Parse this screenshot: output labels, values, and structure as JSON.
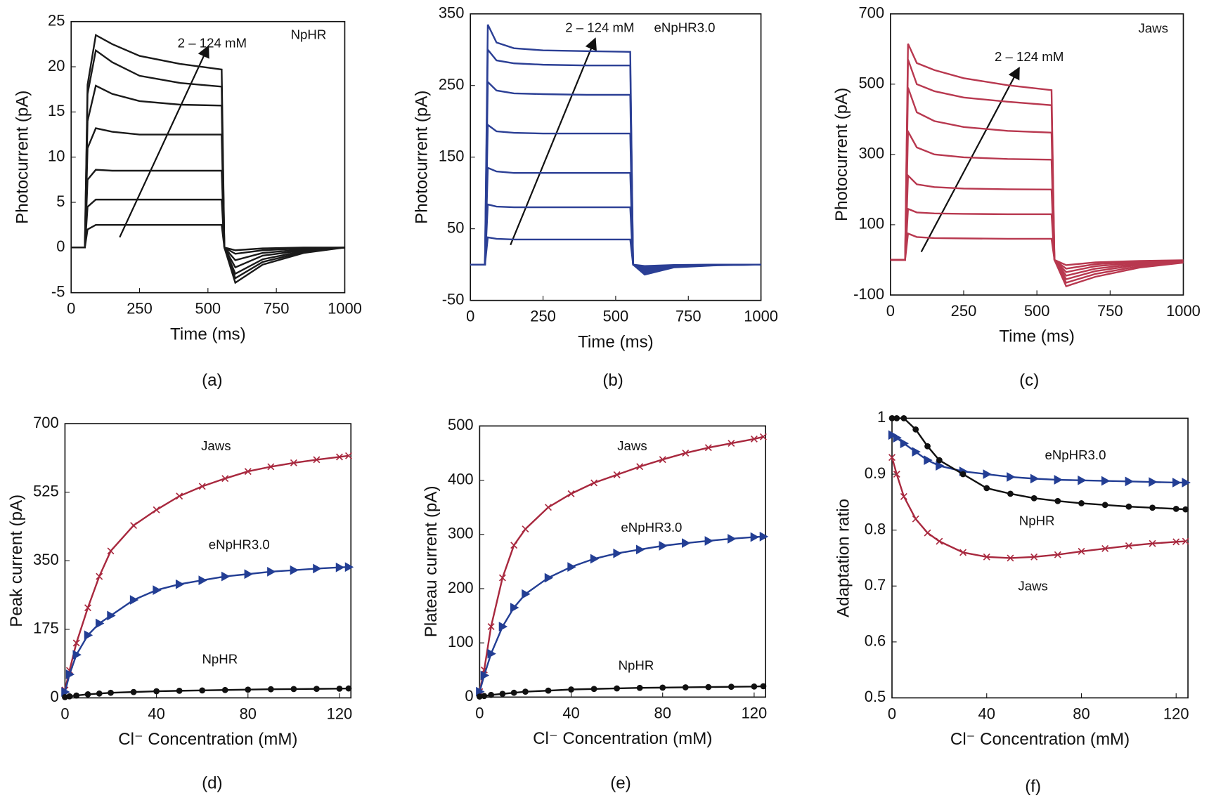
{
  "chart_data": [
    {
      "type": "line",
      "caption": "(a)",
      "xlabel": "Time (ms)",
      "ylabel": "Photocurrent (pA)",
      "annotations": [
        "2 – 124 mM",
        "NpHR"
      ],
      "x": [
        0,
        50,
        60,
        90,
        150,
        250,
        400,
        550,
        560,
        600,
        700,
        850,
        1000
      ],
      "xlim": [
        0,
        1000
      ],
      "xticks": [
        0,
        250,
        500,
        750,
        1000
      ],
      "ylim": [
        -5,
        25
      ],
      "yticks": [
        -5,
        0,
        5,
        10,
        15,
        20,
        25
      ],
      "series": [
        {
          "color": "#1a1a1a",
          "values": [
            0,
            0,
            2,
            2.5,
            2.5,
            2.5,
            2.5,
            2.5,
            0,
            -0.3,
            -0.1,
            0,
            0
          ]
        },
        {
          "color": "#1a1a1a",
          "values": [
            0,
            0,
            4.5,
            5.3,
            5.3,
            5.3,
            5.3,
            5.3,
            0,
            -0.7,
            -0.3,
            -0.1,
            0
          ]
        },
        {
          "color": "#1a1a1a",
          "values": [
            0,
            0,
            7.5,
            8.6,
            8.5,
            8.5,
            8.5,
            8.5,
            0,
            -1.4,
            -0.6,
            -0.2,
            0
          ]
        },
        {
          "color": "#1a1a1a",
          "values": [
            0,
            0,
            11,
            13.2,
            12.8,
            12.5,
            12.5,
            12.5,
            0,
            -2.2,
            -0.9,
            -0.3,
            0
          ]
        },
        {
          "color": "#1a1a1a",
          "values": [
            0,
            0,
            14,
            17.9,
            17,
            16.2,
            15.8,
            15.7,
            0,
            -2.9,
            -1.3,
            -0.4,
            0
          ]
        },
        {
          "color": "#1a1a1a",
          "values": [
            0,
            0,
            17,
            21.8,
            20.5,
            19,
            18.2,
            17.8,
            0,
            -3.4,
            -1.6,
            -0.5,
            0
          ]
        },
        {
          "color": "#1a1a1a",
          "values": [
            0,
            0,
            18,
            23.5,
            22.5,
            21.2,
            20.3,
            19.7,
            0,
            -3.9,
            -1.9,
            -0.6,
            0
          ]
        }
      ]
    },
    {
      "type": "line",
      "caption": "(b)",
      "xlabel": "Time (ms)",
      "ylabel": "Photocurrent (pA)",
      "annotations": [
        "2 – 124 mM",
        "eNpHR3.0"
      ],
      "x": [
        0,
        50,
        60,
        90,
        150,
        250,
        400,
        550,
        560,
        600,
        700,
        850,
        1000
      ],
      "xlim": [
        0,
        1000
      ],
      "xticks": [
        0,
        250,
        500,
        750,
        1000
      ],
      "ylim": [
        -50,
        350
      ],
      "yticks": [
        -50,
        50,
        150,
        250,
        350
      ],
      "series": [
        {
          "color": "#2b3f95",
          "values": [
            0,
            0,
            38,
            36,
            35,
            35,
            35,
            35,
            0,
            -2,
            -0.5,
            0,
            0
          ]
        },
        {
          "color": "#2b3f95",
          "values": [
            0,
            0,
            84,
            81,
            80,
            80,
            80,
            80,
            0,
            -4,
            -1,
            0,
            0
          ]
        },
        {
          "color": "#2b3f95",
          "values": [
            0,
            0,
            135,
            130,
            128,
            128,
            128,
            128,
            0,
            -6,
            -1.5,
            -0.3,
            0
          ]
        },
        {
          "color": "#2b3f95",
          "values": [
            0,
            0,
            195,
            186,
            184,
            183,
            183,
            183,
            0,
            -8,
            -2,
            -0.5,
            0
          ]
        },
        {
          "color": "#2b3f95",
          "values": [
            0,
            0,
            255,
            243,
            239,
            238,
            237,
            237,
            0,
            -10,
            -3,
            -0.6,
            0
          ]
        },
        {
          "color": "#2b3f95",
          "values": [
            0,
            0,
            300,
            285,
            281,
            279,
            278,
            278,
            0,
            -12,
            -3.5,
            -0.8,
            0
          ]
        },
        {
          "color": "#2b3f95",
          "values": [
            0,
            0,
            335,
            310,
            302,
            299,
            298,
            297,
            0,
            -14,
            -4,
            -1,
            0
          ]
        }
      ]
    },
    {
      "type": "line",
      "caption": "(c)",
      "xlabel": "Time (ms)",
      "ylabel": "Photocurrent (pA)",
      "annotations": [
        "2 – 124 mM",
        "Jaws"
      ],
      "x": [
        0,
        50,
        60,
        90,
        150,
        250,
        400,
        550,
        560,
        600,
        700,
        850,
        1000
      ],
      "xlim": [
        0,
        1000
      ],
      "xticks": [
        0,
        250,
        500,
        750,
        1000
      ],
      "ylim": [
        -100,
        700
      ],
      "yticks": [
        -100,
        100,
        300,
        500,
        700
      ],
      "series": [
        {
          "color": "#b8384f",
          "values": [
            0,
            0,
            75,
            65,
            62,
            61,
            60,
            60,
            0,
            -15,
            -7,
            -3,
            -1
          ]
        },
        {
          "color": "#b8384f",
          "values": [
            0,
            0,
            145,
            135,
            132,
            131,
            130,
            130,
            0,
            -25,
            -12,
            -5,
            -2
          ]
        },
        {
          "color": "#b8384f",
          "values": [
            0,
            0,
            240,
            215,
            207,
            203,
            201,
            200,
            0,
            -35,
            -18,
            -8,
            -3
          ]
        },
        {
          "color": "#b8384f",
          "values": [
            0,
            0,
            365,
            320,
            300,
            292,
            287,
            285,
            0,
            -45,
            -25,
            -11,
            -4
          ]
        },
        {
          "color": "#b8384f",
          "values": [
            0,
            0,
            490,
            420,
            395,
            378,
            367,
            362,
            0,
            -55,
            -32,
            -14,
            -5
          ]
        },
        {
          "color": "#b8384f",
          "values": [
            0,
            0,
            570,
            500,
            480,
            462,
            450,
            440,
            0,
            -65,
            -40,
            -18,
            -6
          ]
        },
        {
          "color": "#b8384f",
          "values": [
            0,
            0,
            615,
            560,
            540,
            517,
            497,
            483,
            0,
            -75,
            -48,
            -22,
            -8
          ]
        }
      ]
    },
    {
      "type": "line",
      "caption": "(d)",
      "xlabel": "Cl⁻ Concentration (mM)",
      "ylabel": "Peak  current (pA)",
      "x": [
        0,
        2,
        5,
        10,
        15,
        20,
        30,
        40,
        50,
        60,
        70,
        80,
        90,
        100,
        110,
        120,
        124
      ],
      "xlim": [
        0,
        125
      ],
      "xticks": [
        0,
        40,
        80,
        120
      ],
      "ylim": [
        0,
        700
      ],
      "yticks": [
        0,
        175,
        350,
        525,
        700
      ],
      "series": [
        {
          "name": "Jaws",
          "color": "#a8283e",
          "marker": "x",
          "values": [
            20,
            70,
            140,
            230,
            310,
            375,
            440,
            480,
            515,
            540,
            560,
            578,
            590,
            600,
            608,
            615,
            618
          ]
        },
        {
          "name": "eNpHR3.0",
          "color": "#233e94",
          "marker": "triangle",
          "values": [
            15,
            60,
            110,
            160,
            190,
            210,
            250,
            275,
            290,
            300,
            310,
            316,
            322,
            326,
            330,
            333,
            334
          ]
        },
        {
          "name": "NpHR",
          "color": "#111111",
          "marker": "dot",
          "values": [
            2,
            4,
            6,
            9,
            11,
            13,
            15,
            17,
            18,
            19,
            20,
            21,
            22,
            22.5,
            23,
            23.5,
            24
          ]
        }
      ]
    },
    {
      "type": "line",
      "caption": "(e)",
      "xlabel": "Cl⁻ Concentration (mM)",
      "ylabel": "Plateau  current (pA)",
      "x": [
        0,
        2,
        5,
        10,
        15,
        20,
        30,
        40,
        50,
        60,
        70,
        80,
        90,
        100,
        110,
        120,
        124
      ],
      "xlim": [
        0,
        125
      ],
      "xticks": [
        0,
        40,
        80,
        120
      ],
      "ylim": [
        0,
        500
      ],
      "yticks": [
        0,
        100,
        200,
        300,
        400,
        500
      ],
      "series": [
        {
          "name": "Jaws",
          "color": "#a8283e",
          "marker": "x",
          "values": [
            10,
            50,
            130,
            220,
            280,
            310,
            350,
            375,
            395,
            410,
            425,
            438,
            450,
            460,
            468,
            476,
            480
          ]
        },
        {
          "name": "eNpHR3.0",
          "color": "#233e94",
          "marker": "triangle",
          "values": [
            10,
            40,
            80,
            130,
            165,
            190,
            220,
            240,
            255,
            265,
            272,
            279,
            284,
            288,
            292,
            295,
            296
          ]
        },
        {
          "name": "NpHR",
          "color": "#111111",
          "marker": "dot",
          "values": [
            1,
            2,
            4,
            6,
            8,
            10,
            12,
            14,
            15,
            16,
            17,
            17.5,
            18,
            18.5,
            19,
            19.5,
            20
          ]
        }
      ]
    },
    {
      "type": "line",
      "caption": "(f)",
      "xlabel": "Cl⁻ Concentration (mM)",
      "ylabel": "Adaptation ratio",
      "x": [
        0,
        2,
        5,
        10,
        15,
        20,
        30,
        40,
        50,
        60,
        70,
        80,
        90,
        100,
        110,
        120,
        124
      ],
      "xlim": [
        0,
        125
      ],
      "xticks": [
        0,
        40,
        80,
        120
      ],
      "ylim": [
        0.5,
        1
      ],
      "yticks": [
        0.5,
        0.6,
        0.7,
        0.8,
        0.9,
        1
      ],
      "series": [
        {
          "name": "Jaws",
          "color": "#a8283e",
          "marker": "x",
          "values": [
            0.93,
            0.9,
            0.86,
            0.82,
            0.795,
            0.78,
            0.76,
            0.752,
            0.75,
            0.752,
            0.756,
            0.762,
            0.767,
            0.772,
            0.776,
            0.779,
            0.78
          ]
        },
        {
          "name": "eNpHR3.0",
          "color": "#233e94",
          "marker": "triangle",
          "values": [
            0.97,
            0.965,
            0.955,
            0.94,
            0.925,
            0.915,
            0.905,
            0.9,
            0.895,
            0.892,
            0.89,
            0.889,
            0.888,
            0.887,
            0.886,
            0.885,
            0.885
          ]
        },
        {
          "name": "NpHR",
          "color": "#111111",
          "marker": "dot",
          "values": [
            1,
            1,
            1,
            0.98,
            0.95,
            0.925,
            0.9,
            0.875,
            0.865,
            0.857,
            0.852,
            0.848,
            0.845,
            0.842,
            0.84,
            0.838,
            0.837
          ]
        }
      ]
    }
  ]
}
